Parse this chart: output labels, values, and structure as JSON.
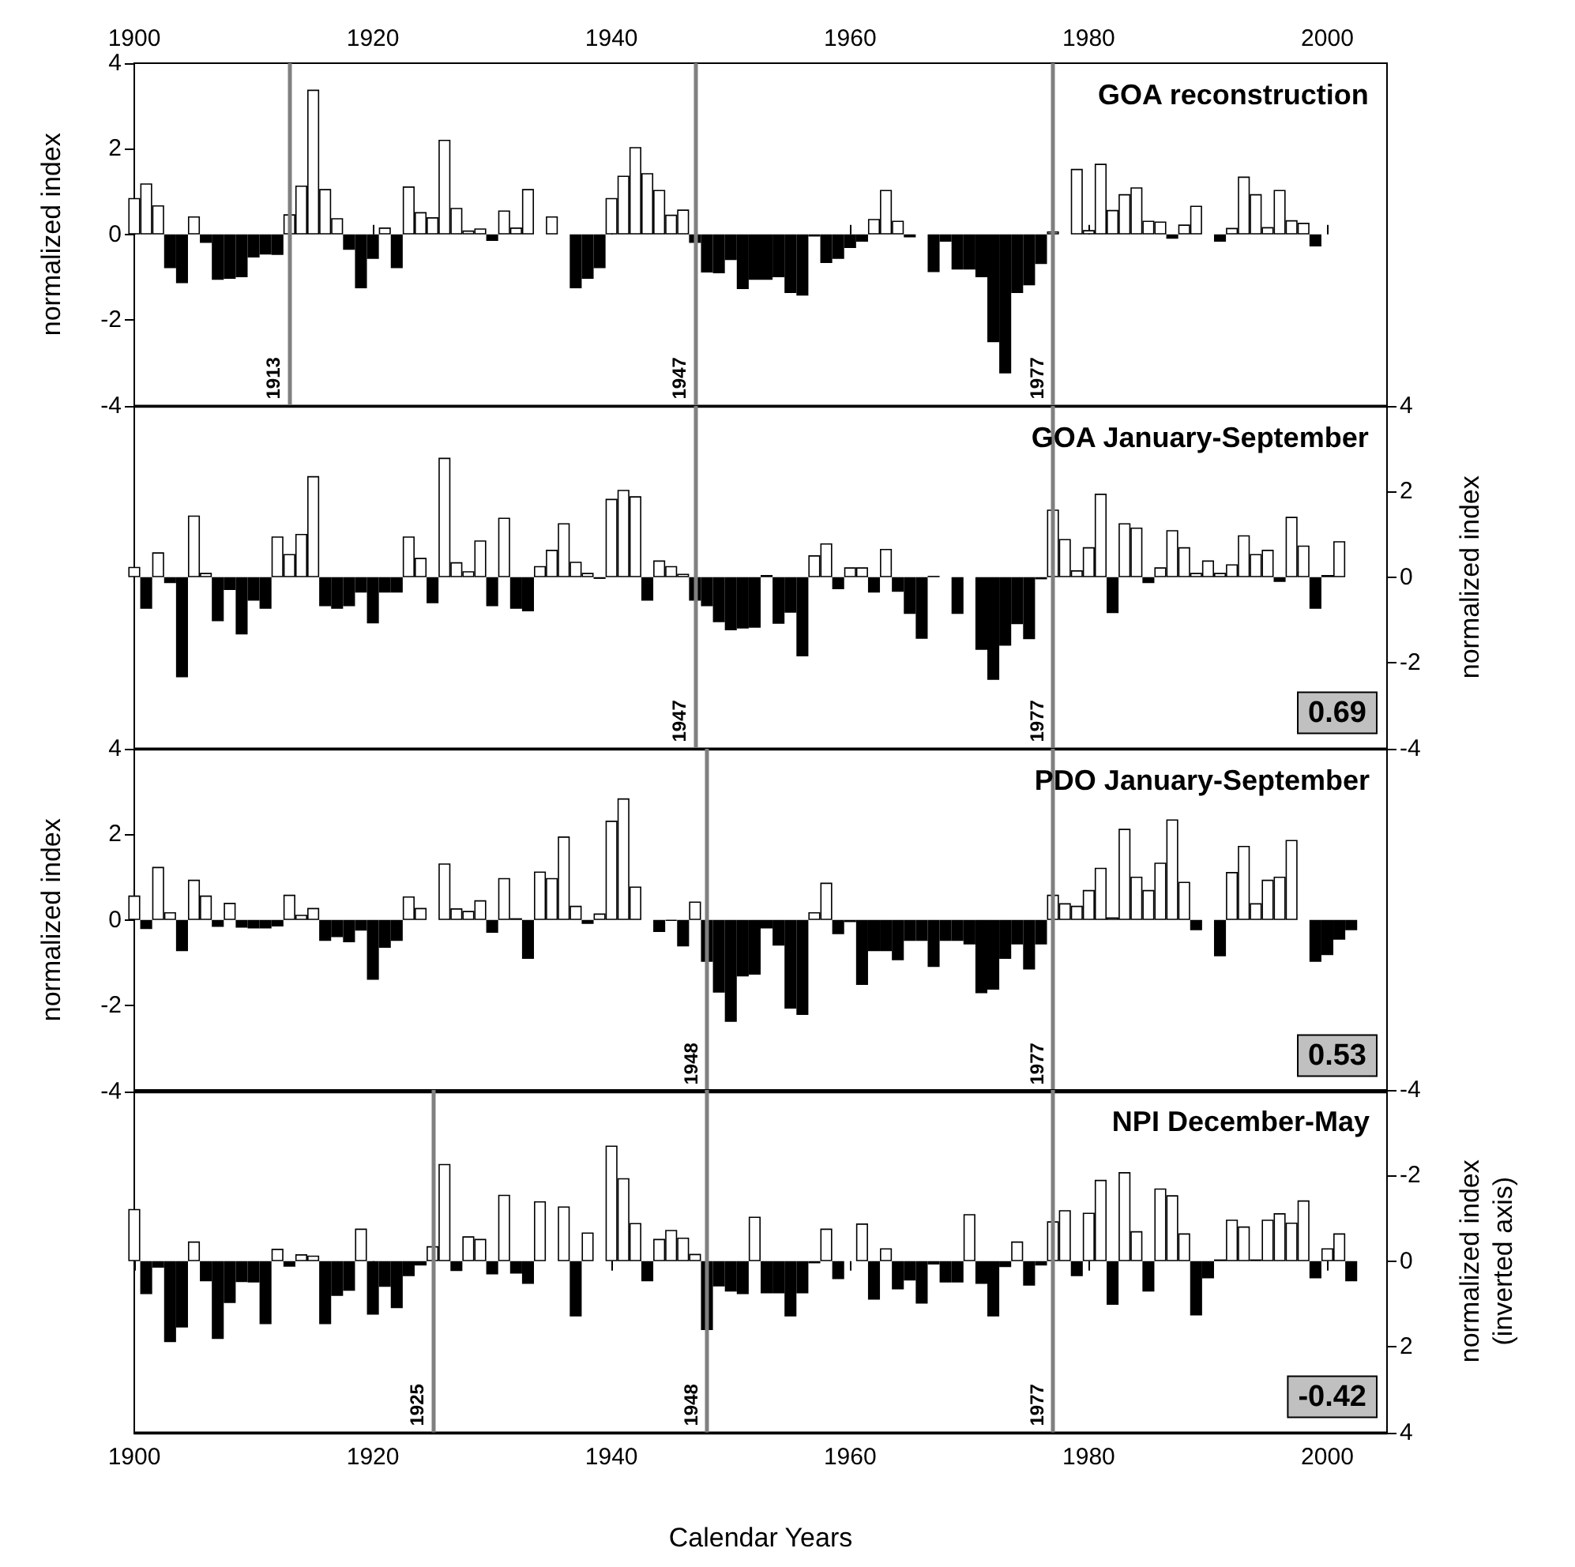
{
  "chart_data": [
    {
      "type": "bar",
      "title": "GOA reconstruction",
      "ylabel": "normalized index",
      "xlim": [
        1900,
        2005
      ],
      "xticks": [
        1900,
        1920,
        1940,
        1960,
        1980,
        2000
      ],
      "ylim": [
        -4,
        4
      ],
      "yticks": [
        -4,
        -2,
        0,
        2,
        4
      ],
      "x": [
        1900,
        1901,
        1902,
        1903,
        1904,
        1905,
        1906,
        1907,
        1908,
        1909,
        1910,
        1911,
        1912,
        1913,
        1914,
        1915,
        1916,
        1917,
        1918,
        1919,
        1920,
        1921,
        1922,
        1923,
        1924,
        1925,
        1926,
        1927,
        1928,
        1929,
        1930,
        1931,
        1932,
        1933,
        1934,
        1935,
        1936,
        1937,
        1938,
        1939,
        1940,
        1941,
        1942,
        1943,
        1944,
        1945,
        1946,
        1947,
        1948,
        1949,
        1950,
        1951,
        1952,
        1953,
        1954,
        1955,
        1956,
        1957,
        1958,
        1959,
        1960,
        1961,
        1962,
        1963,
        1964,
        1965,
        1966,
        1967,
        1968,
        1969,
        1970,
        1971,
        1972,
        1973,
        1974,
        1975,
        1976,
        1977,
        1978,
        1979,
        1980,
        1981,
        1982,
        1983,
        1984,
        1985,
        1986,
        1987,
        1988,
        1989,
        1990,
        1991,
        1992,
        1993,
        1994,
        1995,
        1996,
        1997,
        1998,
        1999
      ],
      "series": [
        {
          "color": "#ffffff",
          "values": [
            0.85,
            1.19,
            0.68,
            null,
            null,
            0.42,
            null,
            null,
            null,
            null,
            null,
            null,
            null,
            0.47,
            1.14,
            3.38,
            1.06,
            0.38,
            null,
            null,
            null,
            0.16,
            null,
            1.12,
            0.52,
            0.4,
            2.21,
            0.62,
            0.09,
            0.14,
            null,
            0.56,
            0.16,
            1.06,
            null,
            0.42,
            null,
            null,
            null,
            null,
            0.85,
            1.37,
            2.04,
            1.43,
            1.04,
            0.46,
            0.58,
            null,
            null,
            null,
            null,
            null,
            null,
            null,
            null,
            null,
            null,
            null,
            null,
            null,
            null,
            null,
            0.36,
            1.04,
            0.32,
            null,
            null,
            null,
            null,
            null,
            null,
            null,
            null,
            null,
            null,
            null,
            null,
            0.07,
            null,
            1.53,
            0.1,
            1.65,
            0.57,
            0.94,
            1.1,
            0.32,
            0.3,
            null,
            0.23,
            0.67,
            null,
            null,
            0.15,
            1.35,
            0.94,
            0.17,
            1.04,
            0.33,
            0.27,
            null
          ]
        },
        {
          "color": "#000000",
          "values": [
            null,
            null,
            null,
            -0.79,
            -1.14,
            null,
            -0.2,
            -1.06,
            -1.04,
            -1.0,
            -0.54,
            -0.47,
            -0.48,
            null,
            null,
            null,
            null,
            null,
            -0.36,
            -1.26,
            -0.57,
            null,
            -0.79,
            null,
            null,
            null,
            null,
            null,
            null,
            null,
            -0.15,
            null,
            null,
            null,
            null,
            null,
            null,
            -1.26,
            -1.04,
            -0.79,
            null,
            null,
            null,
            null,
            null,
            null,
            null,
            -0.2,
            -0.89,
            -0.91,
            -0.6,
            -1.28,
            -1.06,
            -1.06,
            -1.0,
            -1.37,
            -1.43,
            -0.05,
            -0.67,
            -0.57,
            -0.32,
            -0.17,
            null,
            null,
            null,
            -0.07,
            null,
            -0.88,
            -0.17,
            -0.82,
            -0.82,
            -1.0,
            -2.52,
            -3.25,
            -1.37,
            -1.19,
            -0.69,
            null,
            null,
            null,
            null,
            null,
            null,
            null,
            null,
            null,
            null,
            -0.1,
            null,
            null,
            null,
            -0.17,
            null,
            null,
            null,
            null,
            null,
            null,
            null,
            -0.28
          ]
        }
      ],
      "ref_lines": [
        {
          "axis": "x",
          "value": 1913,
          "label": "1913",
          "color": "#808080"
        },
        {
          "axis": "x",
          "value": 1947,
          "label": "1947",
          "color": "#808080"
        },
        {
          "axis": "x",
          "value": 1977,
          "label": "1977",
          "color": "#808080"
        }
      ]
    },
    {
      "type": "bar",
      "title": "GOA January-September",
      "ylabel": "normalized index",
      "tick_labels": "y",
      "xlim": [
        1900,
        2005
      ],
      "xticks": [
        1900,
        1920,
        1940,
        1960,
        1980,
        2000
      ],
      "ylim": [
        -4,
        4
      ],
      "yticks": [
        -4,
        -2,
        0,
        2,
        4
      ],
      "x": [
        1900,
        1901,
        1902,
        1903,
        1904,
        1905,
        1906,
        1907,
        1908,
        1909,
        1910,
        1911,
        1912,
        1913,
        1914,
        1915,
        1916,
        1917,
        1918,
        1919,
        1920,
        1921,
        1922,
        1923,
        1924,
        1925,
        1926,
        1927,
        1928,
        1929,
        1930,
        1931,
        1932,
        1933,
        1934,
        1935,
        1936,
        1937,
        1938,
        1939,
        1940,
        1941,
        1942,
        1943,
        1944,
        1945,
        1946,
        1947,
        1948,
        1949,
        1950,
        1951,
        1952,
        1953,
        1954,
        1955,
        1956,
        1957,
        1958,
        1959,
        1960,
        1961,
        1962,
        1963,
        1964,
        1965,
        1966,
        1967,
        1968,
        1969,
        1970,
        1971,
        1972,
        1973,
        1974,
        1975,
        1976,
        1977,
        1978,
        1979,
        1980,
        1981,
        1982,
        1983,
        1984,
        1985,
        1986,
        1987,
        1988,
        1989,
        1990,
        1991,
        1992,
        1993,
        1994,
        1995,
        1996,
        1997,
        1998,
        1999,
        2000,
        2001
      ],
      "series": [
        {
          "color": "#ffffff",
          "values": [
            0.24,
            null,
            0.58,
            null,
            null,
            1.44,
            0.1,
            null,
            null,
            null,
            null,
            null,
            0.95,
            0.54,
            1.01,
            2.36,
            null,
            null,
            null,
            null,
            null,
            null,
            null,
            0.95,
            0.45,
            null,
            2.79,
            0.35,
            0.14,
            0.86,
            null,
            1.39,
            null,
            null,
            0.26,
            0.64,
            1.26,
            0.36,
            0.1,
            null,
            1.83,
            2.04,
            1.89,
            null,
            0.39,
            0.26,
            0.08,
            null,
            null,
            null,
            null,
            null,
            null,
            0.05,
            null,
            null,
            null,
            0.51,
            0.79,
            null,
            0.23,
            0.23,
            null,
            0.66,
            null,
            null,
            null,
            0.03,
            null,
            null,
            null,
            null,
            null,
            null,
            null,
            null,
            null,
            1.58,
            0.89,
            0.16,
            0.7,
            1.95,
            null,
            1.26,
            1.16,
            null,
            0.23,
            1.1,
            0.7,
            0.1,
            0.39,
            0.1,
            0.3,
            0.98,
            0.54,
            0.64,
            null,
            1.41,
            0.74,
            null,
            0.05,
            0.84
          ]
        },
        {
          "color": "#000000",
          "values": [
            null,
            -0.74,
            null,
            -0.14,
            -2.34,
            null,
            null,
            -1.03,
            -0.3,
            -1.34,
            -0.55,
            -0.74,
            null,
            null,
            null,
            null,
            -0.68,
            -0.74,
            -0.68,
            -0.36,
            -1.08,
            -0.36,
            -0.36,
            null,
            null,
            -0.61,
            null,
            null,
            null,
            null,
            -0.68,
            null,
            -0.74,
            -0.8,
            null,
            null,
            null,
            null,
            null,
            -0.04,
            null,
            null,
            null,
            -0.55,
            null,
            null,
            null,
            -0.55,
            -0.68,
            -1.05,
            -1.24,
            -1.2,
            -1.18,
            null,
            -1.09,
            -0.83,
            -1.85,
            null,
            null,
            -0.28,
            null,
            null,
            -0.36,
            null,
            -0.34,
            -0.86,
            -1.44,
            null,
            null,
            -0.86,
            null,
            -1.7,
            -2.4,
            -1.6,
            -1.1,
            -1.45,
            -0.05,
            null,
            null,
            null,
            null,
            null,
            -0.84,
            null,
            null,
            -0.14,
            null,
            null,
            null,
            null,
            null,
            null,
            null,
            null,
            null,
            null,
            -0.11,
            null,
            null,
            -0.74,
            null,
            null
          ]
        }
      ],
      "ref_lines": [
        {
          "axis": "x",
          "value": 1947,
          "label": "1947",
          "color": "#808080"
        },
        {
          "axis": "x",
          "value": 1977,
          "label": "1977",
          "color": "#808080"
        }
      ],
      "annotations": [
        "0.69"
      ]
    },
    {
      "type": "bar",
      "title": "PDO January-September",
      "ylabel": "normalized index",
      "tick_labels": "y",
      "xlim": [
        1900,
        2005
      ],
      "xticks": [
        1900,
        1920,
        1940,
        1960,
        1980,
        2000
      ],
      "ylim": [
        -4,
        4
      ],
      "yticks": [
        -4,
        -2,
        0,
        2,
        4
      ],
      "x": [
        1900,
        1901,
        1902,
        1903,
        1904,
        1905,
        1906,
        1907,
        1908,
        1909,
        1910,
        1911,
        1912,
        1913,
        1914,
        1915,
        1916,
        1917,
        1918,
        1919,
        1920,
        1921,
        1922,
        1923,
        1924,
        1925,
        1926,
        1927,
        1928,
        1929,
        1930,
        1931,
        1932,
        1933,
        1934,
        1935,
        1936,
        1937,
        1938,
        1939,
        1940,
        1941,
        1942,
        1943,
        1944,
        1945,
        1946,
        1947,
        1948,
        1949,
        1950,
        1951,
        1952,
        1953,
        1954,
        1955,
        1956,
        1957,
        1958,
        1959,
        1960,
        1961,
        1962,
        1963,
        1964,
        1965,
        1966,
        1967,
        1968,
        1969,
        1970,
        1971,
        1972,
        1973,
        1974,
        1975,
        1976,
        1977,
        1978,
        1979,
        1980,
        1981,
        1982,
        1983,
        1984,
        1985,
        1986,
        1987,
        1988,
        1989,
        1990,
        1991,
        1992,
        1993,
        1994,
        1995,
        1996,
        1997,
        1998,
        1999,
        2000,
        2001,
        2002
      ],
      "series": [
        {
          "color": "#ffffff",
          "values": [
            0.57,
            null,
            1.24,
            0.18,
            null,
            0.94,
            0.57,
            null,
            0.4,
            null,
            null,
            null,
            null,
            0.59,
            0.12,
            0.28,
            null,
            null,
            null,
            null,
            null,
            null,
            null,
            0.55,
            0.28,
            null,
            1.32,
            0.27,
            0.21,
            0.46,
            null,
            0.98,
            0.04,
            null,
            1.13,
            0.98,
            1.95,
            0.33,
            null,
            0.15,
            2.32,
            2.84,
            0.78,
            null,
            null,
            null,
            null,
            0.43,
            null,
            null,
            null,
            null,
            null,
            null,
            null,
            null,
            null,
            0.18,
            0.87,
            null,
            null,
            null,
            null,
            null,
            null,
            null,
            null,
            null,
            null,
            null,
            null,
            null,
            null,
            null,
            null,
            null,
            null,
            0.59,
            0.39,
            0.33,
            0.7,
            1.22,
            0.06,
            2.13,
            1.01,
            0.7,
            1.34,
            2.35,
            0.89,
            null,
            null,
            null,
            1.12,
            1.73,
            0.39,
            0.94,
            1.01,
            1.87,
            null,
            null,
            null,
            null,
            null
          ]
        },
        {
          "color": "#000000",
          "values": [
            null,
            -0.21,
            null,
            null,
            -0.73,
            null,
            null,
            -0.16,
            null,
            -0.18,
            -0.2,
            -0.2,
            -0.15,
            null,
            null,
            null,
            -0.49,
            -0.4,
            -0.52,
            -0.25,
            -1.4,
            -0.65,
            -0.49,
            null,
            null,
            null,
            null,
            null,
            null,
            null,
            -0.3,
            null,
            null,
            -0.91,
            null,
            null,
            null,
            null,
            -0.09,
            null,
            null,
            null,
            null,
            null,
            -0.28,
            -0.02,
            -0.62,
            null,
            -0.98,
            -1.7,
            -2.38,
            -1.32,
            -1.28,
            -0.2,
            -0.6,
            -2.07,
            -2.22,
            null,
            null,
            -0.33,
            -0.05,
            -1.52,
            -0.73,
            -0.73,
            -0.94,
            -0.49,
            -0.49,
            -1.1,
            -0.49,
            -0.49,
            -0.57,
            -1.71,
            -1.63,
            -0.91,
            -0.57,
            -1.16,
            -0.57,
            null,
            null,
            null,
            null,
            null,
            null,
            null,
            null,
            null,
            null,
            null,
            null,
            -0.24,
            null,
            -0.85,
            null,
            null,
            null,
            null,
            null,
            null,
            null,
            -0.98,
            -0.82,
            -0.46,
            -0.24
          ]
        }
      ],
      "ref_lines": [
        {
          "axis": "x",
          "value": 1948,
          "label": "1948",
          "color": "#808080"
        },
        {
          "axis": "x",
          "value": 1977,
          "label": "1977",
          "color": "#808080"
        }
      ],
      "annotations": [
        "0.53"
      ]
    },
    {
      "type": "bar",
      "title": "NPI December-May",
      "ylabel": "normalized index\n(inverted axis)",
      "xlabel": "Calendar Years",
      "xlim": [
        1900,
        2005
      ],
      "xticks": [
        1900,
        1920,
        1940,
        1960,
        1980,
        2000
      ],
      "ylim": [
        4,
        -4
      ],
      "yticks": [
        -4,
        -2,
        0,
        2,
        4
      ],
      "x": [
        1900,
        1901,
        1902,
        1903,
        1904,
        1905,
        1906,
        1907,
        1908,
        1909,
        1910,
        1911,
        1912,
        1913,
        1914,
        1915,
        1916,
        1917,
        1918,
        1919,
        1920,
        1921,
        1922,
        1923,
        1924,
        1925,
        1926,
        1927,
        1928,
        1929,
        1930,
        1931,
        1932,
        1933,
        1934,
        1935,
        1936,
        1937,
        1938,
        1939,
        1940,
        1941,
        1942,
        1943,
        1944,
        1945,
        1946,
        1947,
        1948,
        1949,
        1950,
        1951,
        1952,
        1953,
        1954,
        1955,
        1956,
        1957,
        1958,
        1959,
        1960,
        1961,
        1962,
        1963,
        1964,
        1965,
        1966,
        1967,
        1968,
        1969,
        1970,
        1971,
        1972,
        1973,
        1974,
        1975,
        1976,
        1977,
        1978,
        1979,
        1980,
        1981,
        1982,
        1983,
        1984,
        1985,
        1986,
        1987,
        1988,
        1989,
        1990,
        1991,
        1992,
        1993,
        1994,
        1995,
        1996,
        1997,
        1998,
        1999,
        2000,
        2001,
        2002
      ],
      "series": [
        {
          "color": "#ffffff",
          "values": [
            -1.22,
            null,
            null,
            null,
            null,
            -0.46,
            null,
            null,
            null,
            null,
            null,
            null,
            -0.29,
            null,
            -0.16,
            -0.13,
            null,
            null,
            null,
            -0.76,
            null,
            null,
            null,
            null,
            null,
            -0.35,
            -2.27,
            null,
            -0.58,
            -0.52,
            null,
            -1.55,
            null,
            null,
            -1.4,
            null,
            -1.28,
            null,
            -0.67,
            null,
            -2.7,
            -1.94,
            -0.89,
            null,
            -0.52,
            -0.73,
            -0.55,
            -0.17,
            null,
            null,
            null,
            null,
            -1.04,
            null,
            null,
            null,
            null,
            null,
            -0.76,
            null,
            null,
            -0.88,
            null,
            -0.3,
            null,
            null,
            null,
            null,
            null,
            null,
            -1.1,
            null,
            null,
            null,
            -0.46,
            null,
            null,
            -0.93,
            -1.19,
            null,
            -1.13,
            -1.9,
            null,
            -2.08,
            -0.7,
            null,
            -1.7,
            -1.54,
            -0.65,
            null,
            null,
            -0.04,
            -0.97,
            -0.81,
            -0.04,
            -0.97,
            -1.12,
            -0.9,
            -1.42,
            null,
            -0.3,
            -0.65,
            null
          ]
        },
        {
          "color": "#000000",
          "values": [
            null,
            0.77,
            0.15,
            1.89,
            1.55,
            null,
            0.47,
            1.82,
            0.98,
            0.49,
            0.5,
            1.47,
            null,
            0.13,
            null,
            null,
            1.47,
            0.81,
            0.69,
            null,
            1.25,
            0.6,
            1.1,
            0.35,
            0.1,
            null,
            null,
            0.23,
            null,
            null,
            0.31,
            null,
            0.29,
            0.53,
            null,
            null,
            null,
            1.29,
            null,
            null,
            null,
            null,
            null,
            0.47,
            null,
            null,
            null,
            null,
            1.61,
            0.59,
            0.71,
            0.77,
            null,
            0.75,
            0.75,
            1.29,
            0.75,
            0.05,
            null,
            0.42,
            null,
            null,
            0.9,
            null,
            0.66,
            0.45,
            0.99,
            0.08,
            0.5,
            0.5,
            null,
            0.53,
            1.29,
            0.14,
            null,
            0.57,
            0.1,
            null,
            null,
            0.35,
            null,
            null,
            1.02,
            null,
            null,
            0.71,
            null,
            null,
            null,
            1.27,
            0.4,
            null,
            null,
            null,
            null,
            null,
            null,
            null,
            null,
            0.4,
            null,
            null,
            0.47
          ]
        }
      ],
      "ref_lines": [
        {
          "axis": "x",
          "value": 1925,
          "label": "1925",
          "color": "#808080"
        },
        {
          "axis": "x",
          "value": 1948,
          "label": "1948",
          "color": "#808080"
        },
        {
          "axis": "x",
          "value": 1977,
          "label": "1977",
          "color": "#808080"
        }
      ],
      "annotations": [
        "-0.42"
      ]
    }
  ]
}
